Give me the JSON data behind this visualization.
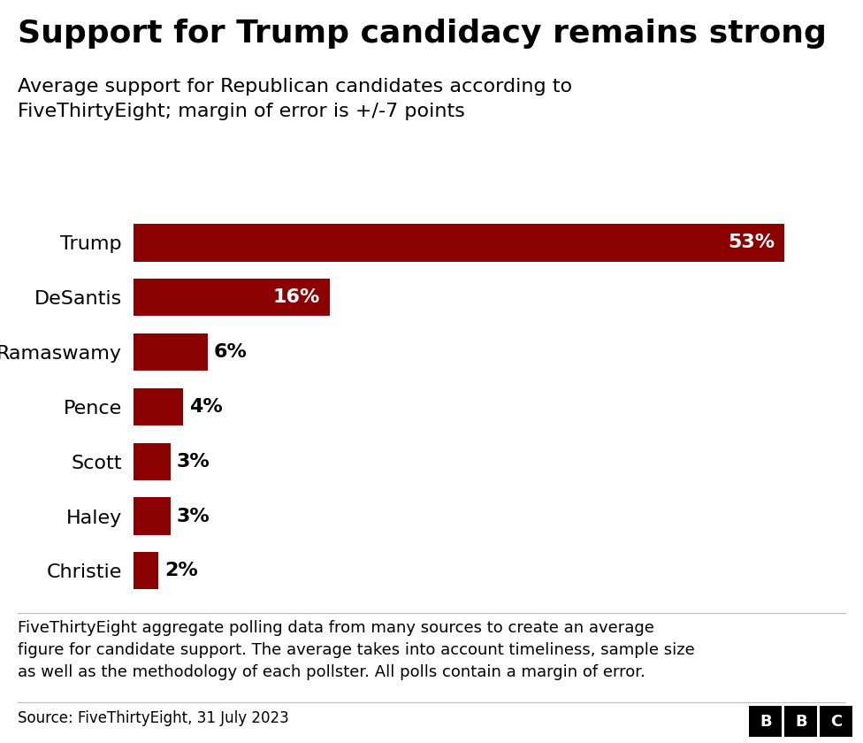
{
  "title": "Support for Trump candidacy remains strong",
  "subtitle": "Average support for Republican candidates according to\nFiveThirtyEight; margin of error is +/-7 points",
  "categories": [
    "Trump",
    "DeSantis",
    "Ramaswamy",
    "Pence",
    "Scott",
    "Haley",
    "Christie"
  ],
  "values": [
    53,
    16,
    6,
    4,
    3,
    3,
    2
  ],
  "bar_color": "#8B0000",
  "label_color_inside": "#ffffff",
  "label_color_outside": "#000000",
  "inside_threshold": 10,
  "background_color": "#ffffff",
  "footer_text": "FiveThirtyEight aggregate polling data from many sources to create an average\nfigure for candidate support. The average takes into account timeliness, sample size\nas well as the methodology of each pollster. All polls contain a margin of error.",
  "source_text": "Source: FiveThirtyEight, 31 July 2023",
  "title_fontsize": 26,
  "subtitle_fontsize": 16,
  "bar_label_fontsize": 16,
  "ytick_fontsize": 16,
  "footer_fontsize": 13,
  "source_fontsize": 12
}
